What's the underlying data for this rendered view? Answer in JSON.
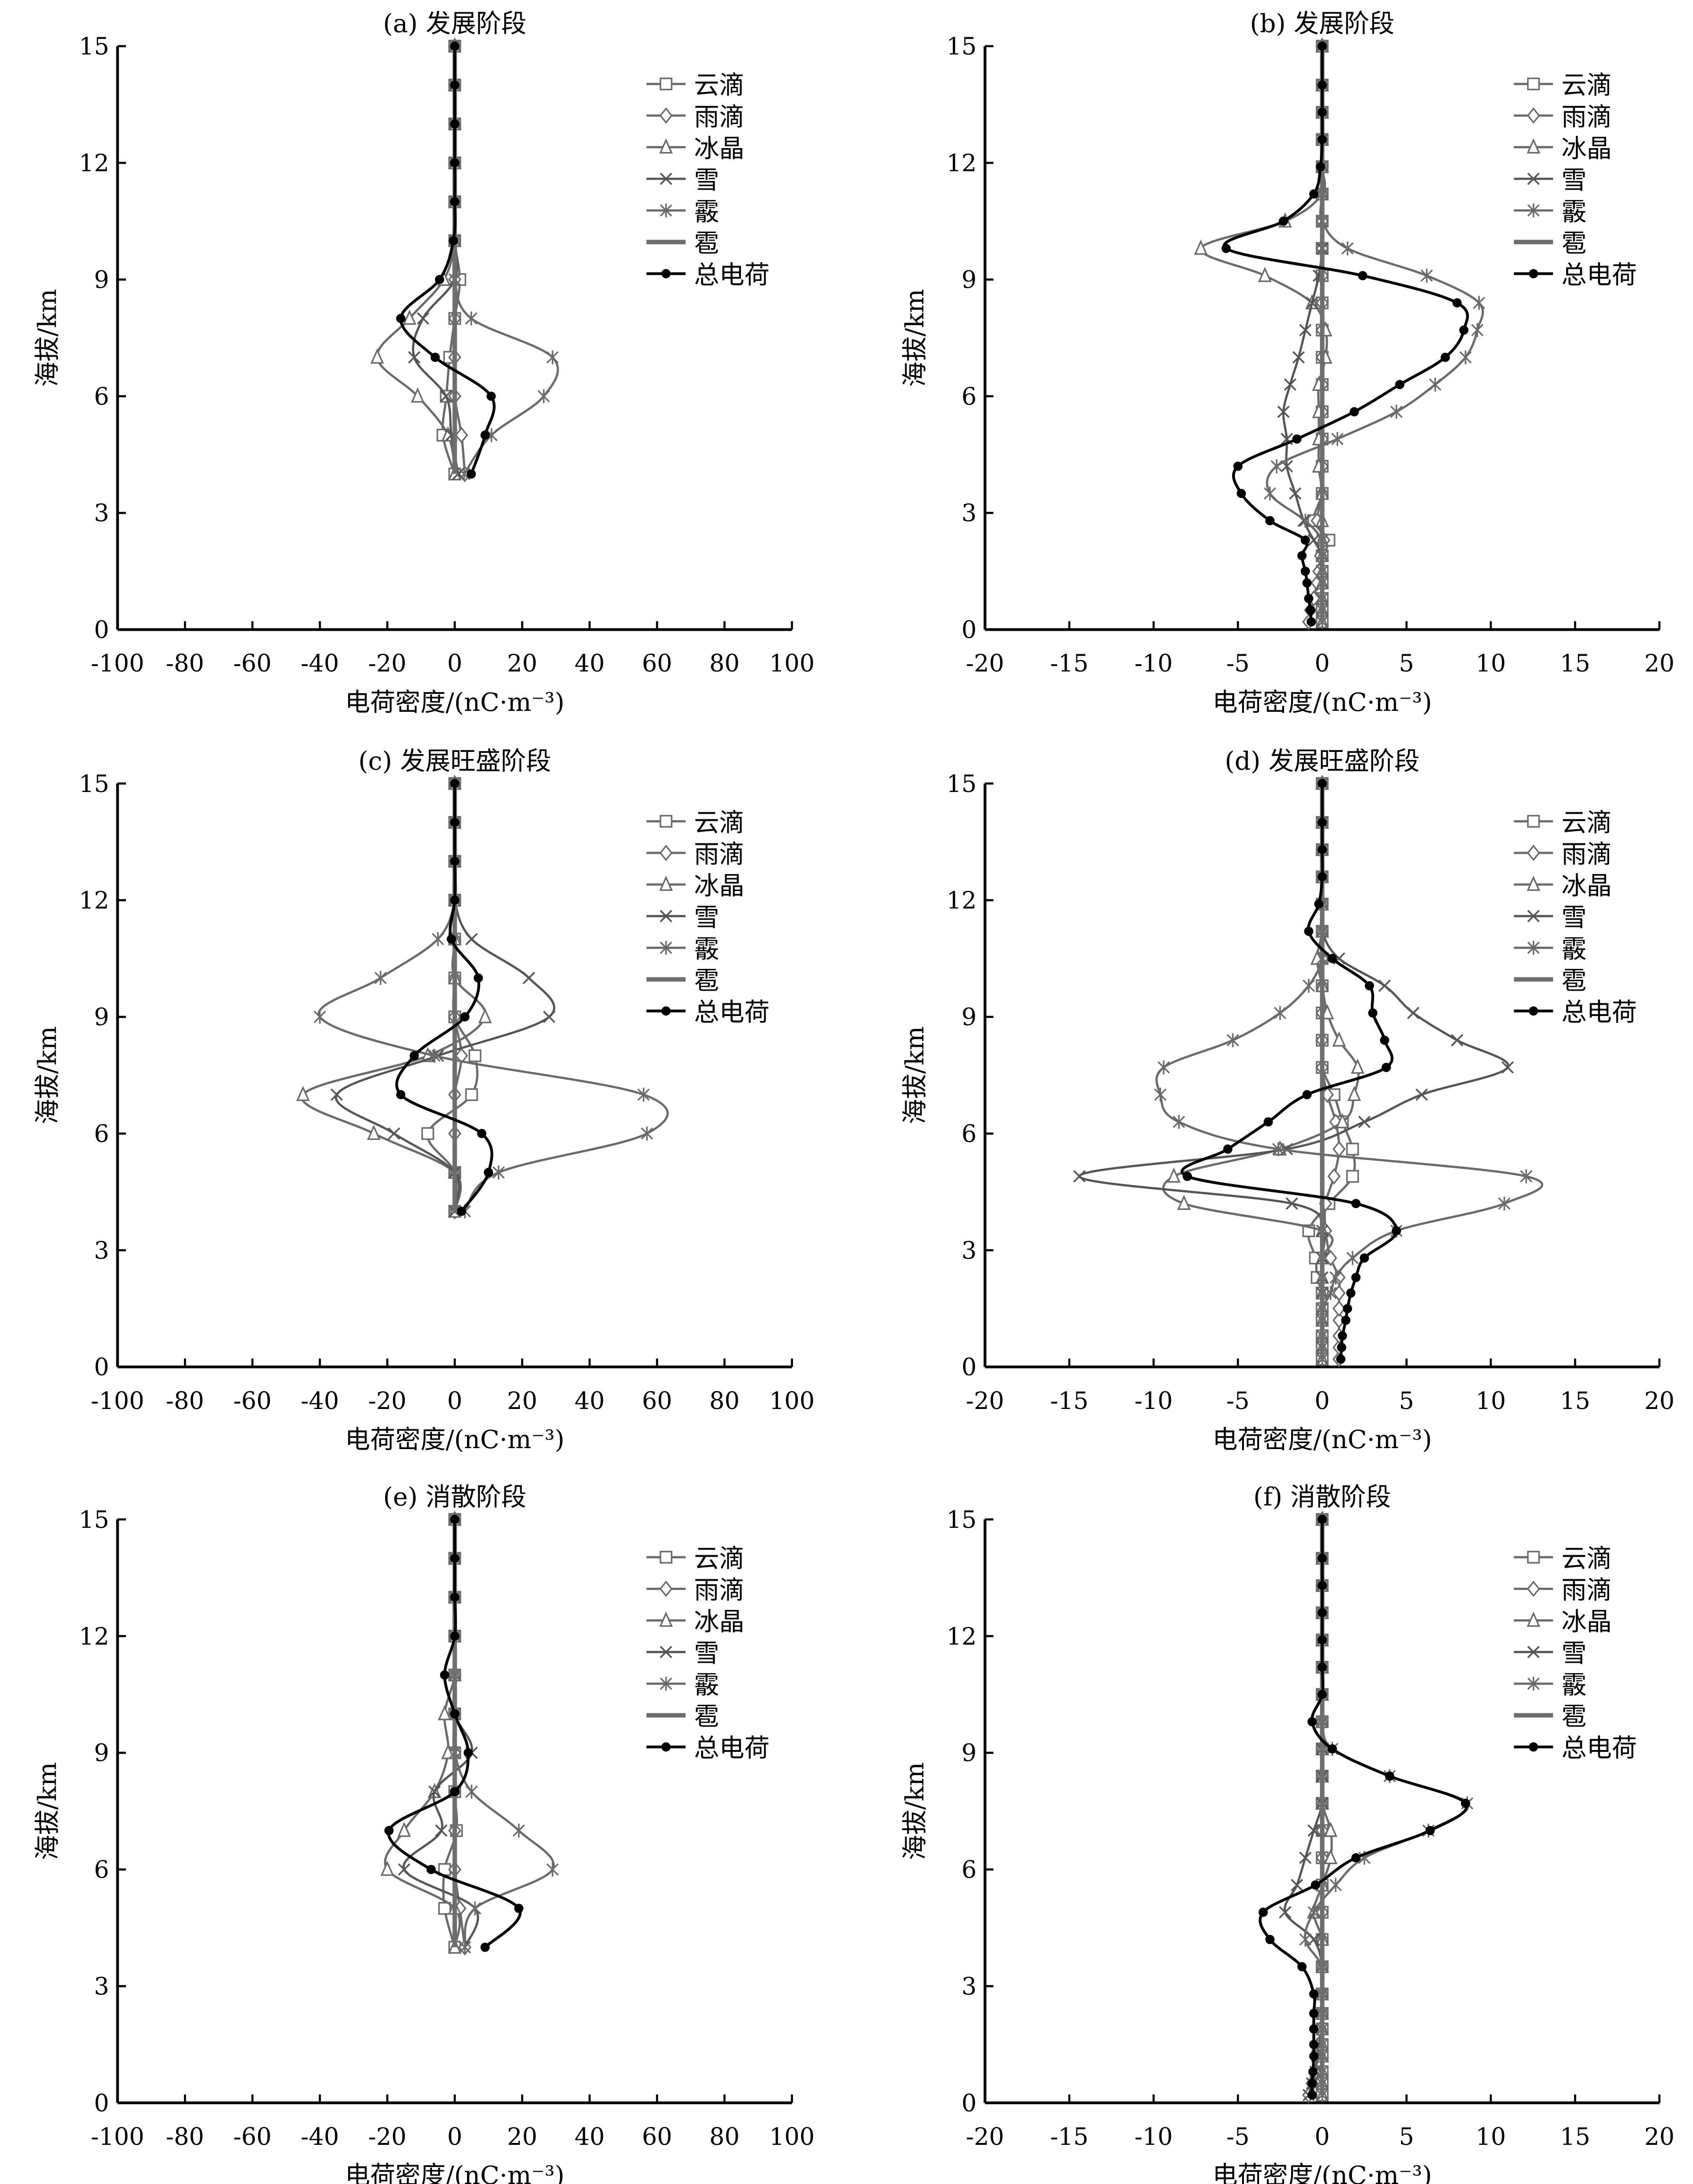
{
  "legend_labels": [
    "云滴",
    "雨滴",
    "冰晶",
    "雪",
    "霰",
    "雹",
    "总电荷"
  ],
  "series_keys": [
    "cloud",
    "rain",
    "ice",
    "snow",
    "graupel",
    "hail",
    "total"
  ],
  "series_style": {
    "cloud": {
      "color": "#6a6a6a",
      "marker": "square"
    },
    "rain": {
      "color": "#6a6a6a",
      "marker": "diamond"
    },
    "ice": {
      "color": "#6a6a6a",
      "marker": "triangle"
    },
    "snow": {
      "color": "#555555",
      "marker": "x"
    },
    "graupel": {
      "color": "#6a6a6a",
      "marker": "asterisk"
    },
    "hail": {
      "color": "#6e6e6e",
      "marker": "none"
    },
    "total": {
      "color": "#000000",
      "marker": "circle"
    }
  },
  "chart_data": [
    {
      "type": "line",
      "title": "(a) 发展阶段",
      "xlabel": "电荷密度/(nC·m⁻³)",
      "ylabel": "海拔/km",
      "xlim": [
        -100,
        100
      ],
      "xticks": [
        -100,
        -80,
        -60,
        -40,
        -20,
        0,
        20,
        40,
        60,
        80,
        100
      ],
      "ylim": [
        0,
        15
      ],
      "yticks": [
        0,
        3,
        6,
        9,
        12,
        15
      ],
      "legend": "top-right",
      "grid": false,
      "levels": [
        4,
        5,
        6,
        7,
        8,
        9,
        10,
        11,
        12,
        13,
        14,
        15
      ],
      "series": {
        "cloud": [
          0,
          -3.5,
          -2.5,
          -1.5,
          0,
          1.5,
          0,
          0,
          0,
          0,
          0,
          0
        ],
        "rain": [
          3,
          2,
          0,
          0,
          0,
          0,
          0,
          0,
          0,
          0,
          0,
          0
        ],
        "ice": [
          0,
          -2,
          -11,
          -23,
          -13.4,
          -3.2,
          0,
          0,
          0,
          0,
          0,
          0
        ],
        "snow": [
          1,
          -1,
          -2.6,
          -12,
          -9.4,
          0,
          0,
          0,
          0,
          0,
          0,
          0
        ],
        "graupel": [
          2.8,
          10.9,
          26.4,
          29,
          4.9,
          0,
          0,
          0,
          0,
          0,
          0,
          0
        ],
        "hail": [
          0,
          0,
          0,
          0,
          0,
          0,
          0,
          0,
          0,
          0,
          0,
          0
        ],
        "total": [
          4.9,
          9,
          10.8,
          -5.8,
          -16,
          -4.5,
          -0.4,
          0,
          0,
          0,
          0,
          0
        ]
      }
    },
    {
      "type": "line",
      "title": "(b) 发展阶段",
      "xlabel": "电荷密度/(nC·m⁻³)",
      "ylabel": "海拔/km",
      "xlim": [
        -20,
        20
      ],
      "xticks": [
        -20,
        -15,
        -10,
        -5,
        0,
        5,
        10,
        15,
        20
      ],
      "ylim": [
        0,
        15
      ],
      "yticks": [
        0,
        3,
        6,
        9,
        12,
        15
      ],
      "legend": "top-right",
      "grid": false,
      "levels": [
        0.2,
        0.5,
        0.8,
        1.2,
        1.5,
        1.9,
        2.3,
        2.8,
        3.5,
        4.2,
        4.9,
        5.6,
        6.3,
        7.0,
        7.7,
        8.4,
        9.1,
        9.8,
        10.5,
        11.2,
        11.9,
        12.6,
        13.3,
        14,
        15
      ],
      "series": {
        "cloud": [
          0,
          0,
          0,
          0,
          0,
          0,
          0.4,
          -0.5,
          0,
          0,
          0,
          0,
          0,
          0,
          0,
          0,
          0,
          0,
          0,
          0,
          0,
          0,
          0,
          0,
          0
        ],
        "rain": [
          -0.8,
          -0.7,
          -0.5,
          -0.3,
          -0.2,
          -0.1,
          0.1,
          -0.3,
          0,
          0,
          0,
          0,
          0,
          0,
          0,
          0,
          0,
          0,
          0,
          0,
          0,
          0,
          0,
          0,
          0
        ],
        "ice": [
          0,
          0,
          0,
          0,
          0,
          0,
          0,
          0,
          0,
          -0.2,
          -0.2,
          -0.2,
          -0.2,
          0.2,
          0.2,
          -0.6,
          -3.4,
          -7.2,
          -2.2,
          0,
          0,
          0,
          0,
          0,
          0
        ],
        "snow": [
          0,
          0,
          0,
          0,
          0,
          0,
          -0.5,
          -1.1,
          -1.6,
          -2.1,
          -2.1,
          -2.3,
          -1.9,
          -1.4,
          -1,
          -0.6,
          -0.2,
          0,
          0,
          0,
          0,
          0,
          0,
          0,
          0
        ],
        "graupel": [
          0,
          0,
          0,
          0,
          0,
          0,
          0,
          -1,
          -3.1,
          -2.7,
          0.9,
          4.4,
          6.7,
          8.5,
          9.2,
          9.3,
          6.2,
          1.5,
          0,
          0,
          0,
          0,
          0,
          0,
          0
        ],
        "hail": [
          0,
          0,
          0,
          0,
          0,
          0,
          0,
          0,
          0,
          0,
          0,
          0,
          0,
          0,
          0,
          0,
          0,
          0,
          0,
          0,
          0,
          0,
          0,
          0,
          0
        ],
        "total": [
          -0.65,
          -0.7,
          -0.8,
          -0.9,
          -1.0,
          -1.2,
          -1.0,
          -3.1,
          -4.8,
          -5.0,
          -1.5,
          1.9,
          4.6,
          7.3,
          8.4,
          8.0,
          2.4,
          -5.7,
          -2.3,
          -0.5,
          -0.1,
          0,
          0,
          0,
          0
        ]
      }
    },
    {
      "type": "line",
      "title": "(c) 发展旺盛阶段",
      "xlabel": "电荷密度/(nC·m⁻³)",
      "ylabel": "海拔/km",
      "xlim": [
        -100,
        100
      ],
      "xticks": [
        -100,
        -80,
        -60,
        -40,
        -20,
        0,
        20,
        40,
        60,
        80,
        100
      ],
      "ylim": [
        0,
        15
      ],
      "yticks": [
        0,
        3,
        6,
        9,
        12,
        15
      ],
      "legend": "top-right",
      "grid": false,
      "levels": [
        4,
        5,
        6,
        7,
        8,
        9,
        10,
        11,
        12,
        13,
        14,
        15
      ],
      "series": {
        "cloud": [
          0,
          0,
          -8,
          5,
          6,
          0,
          0,
          0,
          0,
          0,
          0,
          0
        ],
        "rain": [
          0,
          0,
          0,
          0,
          2,
          0,
          0,
          0,
          0,
          0,
          0,
          0
        ],
        "ice": [
          0,
          0,
          -24,
          -45,
          -8,
          9,
          0,
          0,
          0,
          0,
          0,
          0
        ],
        "snow": [
          0,
          0,
          -18,
          -35,
          -5,
          28,
          22,
          5,
          0,
          0,
          0,
          0
        ],
        "graupel": [
          3,
          13,
          57,
          56,
          -6,
          -40,
          -22,
          -5,
          0,
          0,
          0,
          0
        ],
        "hail": [
          0,
          0,
          0,
          0,
          0,
          0,
          0,
          0,
          0,
          0,
          0,
          0
        ],
        "total": [
          2,
          10,
          8,
          -16,
          -12,
          3,
          7,
          -1,
          0,
          0,
          0,
          0
        ]
      }
    },
    {
      "type": "line",
      "title": "(d) 发展旺盛阶段",
      "xlabel": "电荷密度/(nC·m⁻³)",
      "ylabel": "海拔/km",
      "xlim": [
        -20,
        20
      ],
      "xticks": [
        -20,
        -15,
        -10,
        -5,
        0,
        5,
        10,
        15,
        20
      ],
      "ylim": [
        0,
        15
      ],
      "yticks": [
        0,
        3,
        6,
        9,
        12,
        15
      ],
      "legend": "top-right",
      "grid": false,
      "levels": [
        0.2,
        0.5,
        0.8,
        1.2,
        1.5,
        1.9,
        2.3,
        2.8,
        3.5,
        4.2,
        4.9,
        5.6,
        6.3,
        7.0,
        7.7,
        8.4,
        9.1,
        9.8,
        10.5,
        11.2,
        11.9,
        12.6,
        13.3,
        14,
        15
      ],
      "series": {
        "cloud": [
          0,
          0,
          0,
          0,
          0,
          0,
          -0.3,
          -0.4,
          -0.8,
          0.4,
          1.8,
          1.8,
          1.2,
          0.7,
          0,
          0,
          0,
          0,
          0,
          0,
          0,
          0,
          0,
          0,
          0
        ],
        "rain": [
          1,
          1,
          1,
          1,
          1,
          1,
          1,
          0.5,
          0.2,
          0.2,
          0.7,
          1.0,
          0.8,
          0.3,
          0,
          0,
          0,
          0,
          0,
          0,
          0,
          0,
          0,
          0,
          0
        ],
        "ice": [
          0,
          0,
          0,
          0,
          0,
          0,
          0,
          0,
          0,
          -8.2,
          -8.8,
          -2.5,
          1.2,
          1.9,
          2.1,
          1.0,
          0.3,
          0,
          -0.3,
          0,
          0,
          0,
          0,
          0,
          0
        ],
        "snow": [
          0,
          0,
          0,
          0,
          0,
          0,
          0,
          0,
          0,
          -1.8,
          -14.4,
          -2.1,
          2.5,
          5.9,
          11.0,
          8.0,
          5.4,
          3.7,
          1.0,
          0,
          0,
          0,
          0,
          0,
          0
        ],
        "graupel": [
          0,
          0,
          0,
          0,
          0,
          0.5,
          0.8,
          1.8,
          4.4,
          10.8,
          12.1,
          -2.6,
          -8.5,
          -9.6,
          -9.4,
          -5.3,
          -2.5,
          -0.8,
          0,
          0,
          0,
          0,
          0,
          0,
          0
        ],
        "hail": [
          0,
          0,
          0,
          0,
          0,
          0,
          0,
          0,
          0,
          0,
          0,
          0,
          0,
          0,
          0,
          0,
          0,
          0,
          0,
          0,
          0,
          0,
          0,
          0,
          0
        ],
        "total": [
          1.1,
          1.15,
          1.2,
          1.4,
          1.5,
          1.7,
          2.0,
          2.5,
          4.4,
          2.0,
          -8.0,
          -5.6,
          -3.2,
          -0.9,
          3.8,
          3.7,
          3.0,
          2.8,
          0.6,
          -0.8,
          -0.2,
          0,
          0,
          0,
          0
        ]
      }
    },
    {
      "type": "line",
      "title": "(e) 消散阶段",
      "xlabel": "电荷密度/(nC·m⁻³)",
      "ylabel": "海拔/km",
      "xlim": [
        -100,
        100
      ],
      "xticks": [
        -100,
        -80,
        -60,
        -40,
        -20,
        0,
        20,
        40,
        60,
        80,
        100
      ],
      "ylim": [
        0,
        15
      ],
      "yticks": [
        0,
        3,
        6,
        9,
        12,
        15
      ],
      "legend": "top-right",
      "grid": false,
      "levels": [
        4,
        5,
        6,
        7,
        8,
        9,
        10,
        11,
        12,
        13,
        14,
        15
      ],
      "series": {
        "cloud": [
          0,
          -3,
          -3,
          0.5,
          0,
          0,
          0,
          0,
          0,
          0,
          0,
          0
        ],
        "rain": [
          3,
          1.5,
          0,
          0,
          0,
          0,
          0,
          0,
          0,
          0,
          0,
          0
        ],
        "ice": [
          0,
          0,
          -20,
          -15,
          -6,
          -2,
          -3,
          0,
          0,
          0,
          0,
          0
        ],
        "snow": [
          3,
          6,
          -15,
          -4,
          -6,
          5,
          0,
          0,
          0,
          0,
          0,
          0
        ],
        "graupel": [
          3,
          6,
          29,
          19,
          5,
          0,
          0,
          0,
          0,
          0,
          0,
          0
        ],
        "hail": [
          0,
          0,
          0,
          0,
          0,
          0,
          0,
          0,
          0,
          0,
          0,
          0
        ],
        "total": [
          9,
          19,
          -7,
          -19.5,
          0,
          4,
          0,
          -3,
          0,
          0,
          0,
          0
        ]
      }
    },
    {
      "type": "line",
      "title": "(f) 消散阶段",
      "xlabel": "电荷密度/(nC·m⁻³)",
      "ylabel": "海拔/km",
      "xlim": [
        -20,
        20
      ],
      "xticks": [
        -20,
        -15,
        -10,
        -5,
        0,
        5,
        10,
        15,
        20
      ],
      "ylim": [
        0,
        15
      ],
      "yticks": [
        0,
        3,
        6,
        9,
        12,
        15
      ],
      "legend": "top-right",
      "grid": false,
      "levels": [
        0.2,
        0.5,
        0.8,
        1.2,
        1.5,
        1.9,
        2.3,
        2.8,
        3.5,
        4.2,
        4.9,
        5.6,
        6.3,
        7.0,
        7.7,
        8.4,
        9.1,
        9.8,
        10.5,
        11.2,
        11.9,
        12.6,
        13.3,
        14,
        15
      ],
      "series": {
        "cloud": [
          0,
          0,
          0,
          0,
          0,
          0,
          0,
          0,
          0,
          0,
          0,
          0,
          0,
          0,
          0,
          0,
          0,
          0,
          0,
          0,
          0,
          0,
          0,
          0,
          0
        ],
        "rain": [
          -0.8,
          -0.6,
          -0.4,
          -0.3,
          -0.2,
          -0.1,
          0,
          0,
          0,
          0,
          0,
          0,
          0,
          0,
          0,
          0,
          0,
          0,
          0,
          0,
          0,
          0,
          0,
          0,
          0
        ],
        "ice": [
          0,
          0,
          0,
          0,
          0,
          0,
          0,
          0,
          0,
          0,
          -0.5,
          0,
          0.5,
          0.5,
          0,
          0,
          0,
          0,
          0,
          0,
          0,
          0,
          0,
          0,
          0
        ],
        "snow": [
          -0.8,
          -0.6,
          -0.4,
          -0.3,
          -0.2,
          0,
          0,
          0,
          0,
          -0.5,
          -2.2,
          -1.5,
          -1,
          -0.5,
          0,
          0,
          0,
          0,
          0,
          0,
          0,
          0,
          0,
          0,
          0
        ],
        "graupel": [
          0,
          0,
          0,
          0,
          0,
          0,
          0,
          0,
          0,
          -1,
          -0.5,
          0.8,
          2.5,
          6.3,
          8.6,
          4,
          0.6,
          0,
          0,
          0,
          0,
          0,
          0,
          0,
          0
        ],
        "hail": [
          0,
          0,
          0,
          0,
          0,
          0,
          0,
          0,
          0,
          0,
          0,
          0,
          0,
          0,
          0,
          0,
          0,
          0,
          0,
          0,
          0,
          0,
          0,
          0,
          0
        ],
        "total": [
          -0.6,
          -0.6,
          -0.55,
          -0.5,
          -0.5,
          -0.5,
          -0.5,
          -0.5,
          -1.2,
          -3.1,
          -3.5,
          -0.4,
          2,
          6.4,
          8.5,
          4,
          0.6,
          -0.6,
          0,
          0,
          0,
          0,
          0,
          0,
          0
        ]
      }
    }
  ]
}
